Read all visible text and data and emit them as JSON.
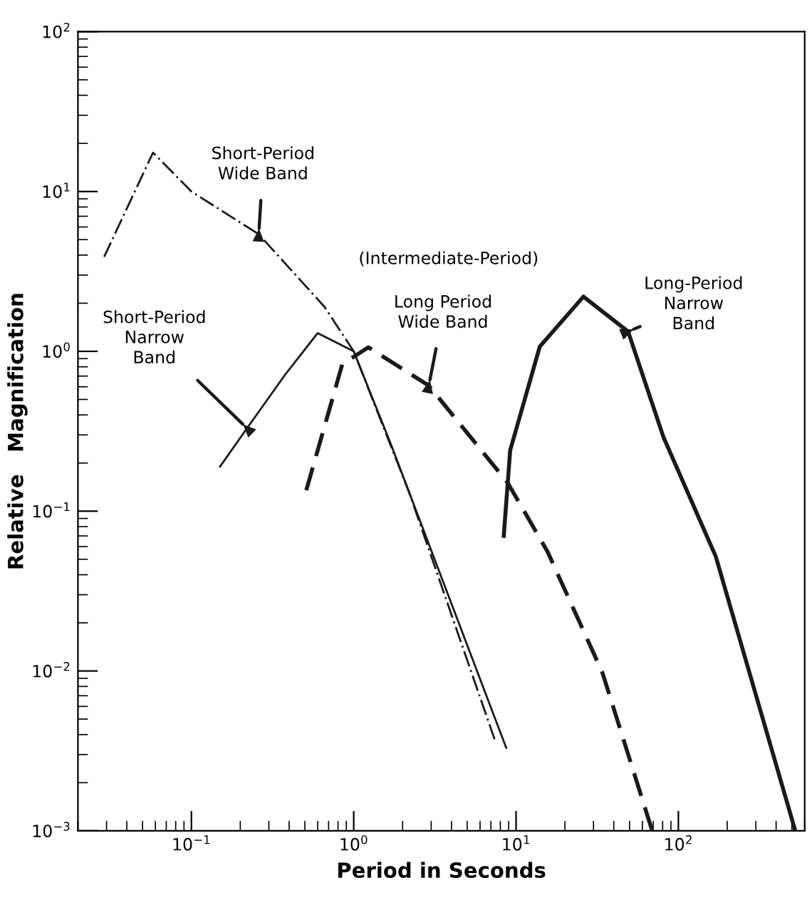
{
  "chart_data": {
    "type": "line",
    "log": "xy",
    "xlabel": "Period in Seconds",
    "ylabel": "Relative   Magnification",
    "xlim": [
      0.02,
      600
    ],
    "ylim": [
      0.001,
      100
    ],
    "xticks": [
      {
        "value": 0.1,
        "label": "10$^{−1}$"
      },
      {
        "value": 1,
        "label": "10$^{0}$"
      },
      {
        "value": 10,
        "label": "10$^{1}$"
      },
      {
        "value": 100,
        "label": "10$^{2}$"
      }
    ],
    "yticks": [
      {
        "value": 0.001,
        "label": "10$^{−3}$"
      },
      {
        "value": 0.01,
        "label": "10$^{−2}$"
      },
      {
        "value": 0.1,
        "label": "10$^{−1}$"
      },
      {
        "value": 1,
        "label": "10$^{0}$"
      },
      {
        "value": 10,
        "label": "10$^{1}$"
      },
      {
        "value": 100,
        "label": "10$^{2}$"
      }
    ],
    "grid": false,
    "legend": false,
    "marker": "none",
    "series": [
      {
        "color": "#1a1a1a",
        "line_style": "dashdot",
        "x": [
          0.029,
          0.058,
          0.1,
          0.26,
          0.66,
          1.0,
          2.2,
          7.4
        ],
        "values": [
          3.9,
          17.5,
          10,
          5.4,
          1.9,
          1.0,
          0.13,
          0.0037
        ]
      },
      {
        "color": "#1a1a1a",
        "line_style": "solid",
        "x": [
          0.15,
          0.22,
          0.38,
          0.6,
          1.0,
          1.7,
          8.7
        ],
        "values": [
          0.19,
          0.33,
          0.72,
          1.3,
          1.0,
          0.26,
          0.0033
        ]
      },
      {
        "color": "#1a1a1a",
        "line_style": "dashed",
        "x": [
          0.51,
          0.85,
          1.23,
          2.9,
          8.9,
          15.6,
          34,
          69
        ],
        "values": [
          0.135,
          0.83,
          1.06,
          0.61,
          0.15,
          0.056,
          0.0098,
          0.001
        ]
      },
      {
        "color": "#1a1a1a",
        "line_style": "solid",
        "x": [
          8.4,
          9.2,
          14,
          26,
          49,
          81,
          170,
          525
        ],
        "values": [
          0.07,
          0.24,
          1.07,
          2.2,
          1.33,
          0.29,
          0.052,
          0.001
        ]
      }
    ],
    "annotations": [
      {
        "text": "Short-Period\nWide Band",
        "x": 0.26,
        "y": 5.4
      },
      {
        "text": "Short-Period\nNarrow\nBand",
        "x": 0.22,
        "y": 0.33
      },
      {
        "text": "Long Period\nWide Band",
        "x": 2.9,
        "y": 0.61
      },
      "(Intermediate-Period)",
      {
        "text": "Long-Period\nNarrow\nBand",
        "x": 49,
        "y": 1.33
      }
    ]
  }
}
